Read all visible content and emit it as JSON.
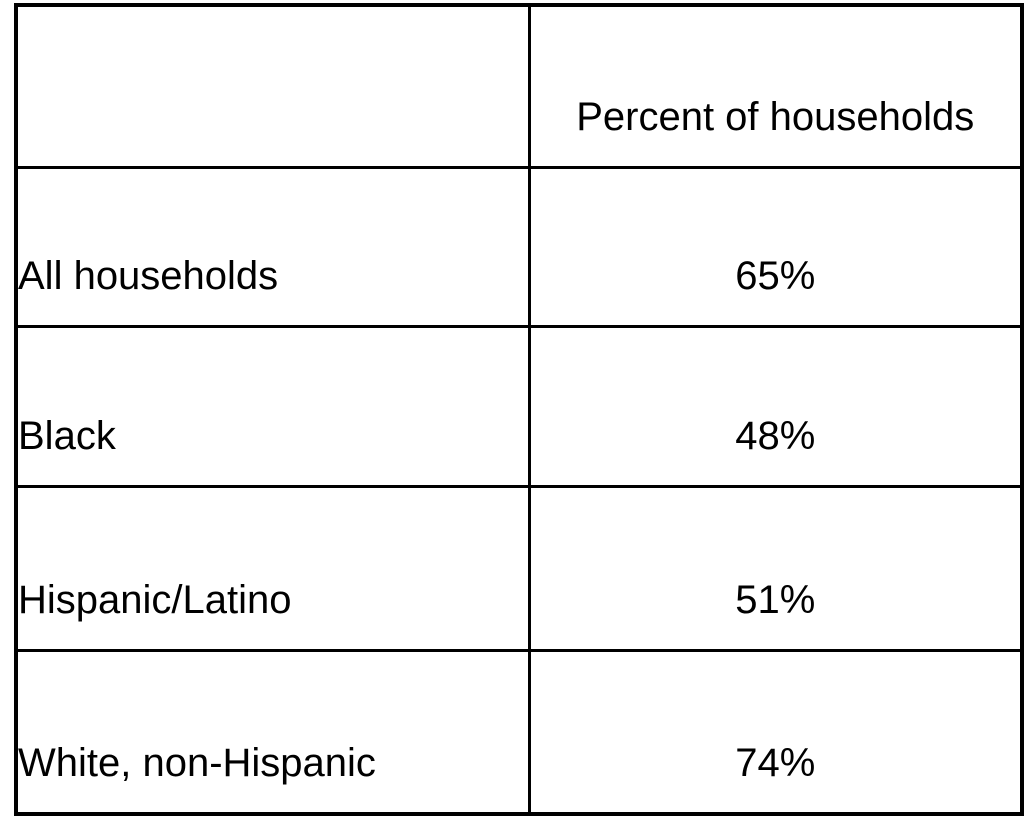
{
  "chart_data": {
    "type": "table",
    "columns": [
      {
        "label": ""
      },
      {
        "label": "Percent of households"
      }
    ],
    "rows": [
      {
        "category": "All households",
        "percent": "65%"
      },
      {
        "category": "Black",
        "percent": "48%"
      },
      {
        "category": "Hispanic/Latino",
        "percent": "51%"
      },
      {
        "category": "White, non-Hispanic",
        "percent": "74%"
      }
    ]
  },
  "colors": {
    "border": "#000000",
    "text": "#000000",
    "background": "#ffffff"
  }
}
